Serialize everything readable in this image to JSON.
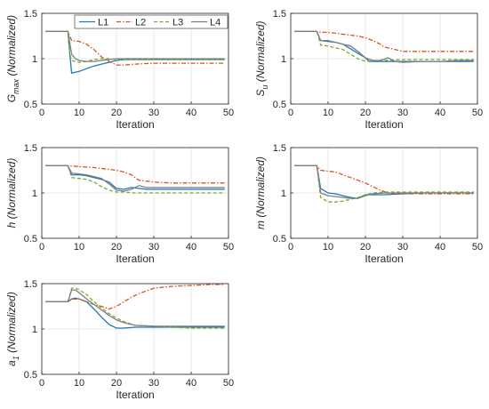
{
  "legend": {
    "placement": "top",
    "entries": [
      {
        "label": "L1",
        "color": "#1f77b4",
        "style": "solid"
      },
      {
        "label": "L2",
        "color": "#d95319",
        "style": "dashdot"
      },
      {
        "label": "L3",
        "color": "#77ac30",
        "style": "dashed"
      },
      {
        "label": "L4",
        "color": "#7f7f7f",
        "style": "solid"
      }
    ]
  },
  "chart_data": [
    {
      "type": "line",
      "ylabel_main": "G",
      "ylabel_sub": "max",
      "ylabel_suffix": " (Normalized)",
      "xlabel": "Iteration",
      "xlim": [
        0,
        50
      ],
      "ylim": [
        0.5,
        1.5
      ],
      "xticks": [
        0,
        10,
        20,
        30,
        40,
        50
      ],
      "yticks": [
        0.5,
        1,
        1.5
      ],
      "grid": true,
      "series": [
        {
          "name": "L1",
          "x": [
            1,
            7,
            7.5,
            8,
            9,
            10,
            12,
            14,
            16,
            18,
            20,
            22,
            25,
            30,
            35,
            40,
            45,
            49
          ],
          "y": [
            1.3,
            1.3,
            1.05,
            0.84,
            0.85,
            0.86,
            0.89,
            0.92,
            0.94,
            0.96,
            0.98,
            0.99,
            0.99,
            0.99,
            0.99,
            0.99,
            0.99,
            0.99
          ]
        },
        {
          "name": "L2",
          "x": [
            1,
            7,
            8,
            10,
            12,
            14,
            16,
            18,
            20,
            22,
            25,
            30,
            35,
            40,
            45,
            49
          ],
          "y": [
            1.3,
            1.3,
            1.2,
            1.19,
            1.16,
            1.1,
            1.02,
            0.97,
            0.93,
            0.93,
            0.94,
            0.95,
            0.95,
            0.95,
            0.95,
            0.95
          ]
        },
        {
          "name": "L3",
          "x": [
            1,
            7,
            7.5,
            8,
            9,
            10,
            12,
            14,
            16,
            18,
            20,
            25,
            30,
            35,
            40,
            45,
            49
          ],
          "y": [
            1.3,
            1.3,
            1.05,
            0.98,
            0.97,
            0.96,
            0.97,
            0.99,
            1.0,
            1.0,
            0.99,
            0.99,
            0.99,
            0.99,
            0.99,
            0.99,
            0.99
          ]
        },
        {
          "name": "L4",
          "x": [
            1,
            7,
            8,
            9,
            10,
            12,
            14,
            16,
            18,
            20,
            25,
            30,
            35,
            40,
            45,
            49
          ],
          "y": [
            1.3,
            1.3,
            1.05,
            1.0,
            0.98,
            0.97,
            0.97,
            0.98,
            0.99,
            1.0,
            1.0,
            1.0,
            1.0,
            1.0,
            1.0,
            1.0
          ]
        }
      ]
    },
    {
      "type": "line",
      "ylabel_main": "S",
      "ylabel_sub": "u",
      "ylabel_suffix": " (Normalized)",
      "xlabel": "Iteration",
      "xlim": [
        0,
        50
      ],
      "ylim": [
        0.5,
        1.5
      ],
      "xticks": [
        0,
        10,
        20,
        30,
        40,
        50
      ],
      "yticks": [
        0.5,
        1,
        1.5
      ],
      "grid": true,
      "series": [
        {
          "name": "L1",
          "x": [
            1,
            7,
            8,
            10,
            12,
            14,
            16,
            18,
            20,
            21,
            22,
            25,
            30,
            35,
            40,
            45,
            49
          ],
          "y": [
            1.3,
            1.3,
            1.2,
            1.19,
            1.18,
            1.16,
            1.11,
            1.06,
            1.01,
            0.97,
            0.97,
            0.97,
            0.97,
            0.97,
            0.97,
            0.97,
            0.97
          ]
        },
        {
          "name": "L2",
          "x": [
            1,
            7,
            8,
            10,
            12,
            14,
            16,
            18,
            20,
            22,
            24,
            25,
            26,
            28,
            30,
            35,
            40,
            45,
            49
          ],
          "y": [
            1.3,
            1.3,
            1.29,
            1.29,
            1.28,
            1.27,
            1.26,
            1.25,
            1.23,
            1.2,
            1.16,
            1.13,
            1.12,
            1.1,
            1.08,
            1.08,
            1.08,
            1.08,
            1.08
          ]
        },
        {
          "name": "L3",
          "x": [
            1,
            7,
            8,
            10,
            12,
            14,
            16,
            18,
            20,
            22,
            25,
            30,
            35,
            40,
            45,
            49
          ],
          "y": [
            1.3,
            1.3,
            1.15,
            1.14,
            1.12,
            1.1,
            1.05,
            1.0,
            0.97,
            0.98,
            0.98,
            0.99,
            0.99,
            0.99,
            0.99,
            0.99
          ]
        },
        {
          "name": "L4",
          "x": [
            1,
            7,
            8,
            10,
            12,
            14,
            16,
            18,
            20,
            22,
            24,
            26,
            28,
            30,
            35,
            40,
            45,
            49
          ],
          "y": [
            1.3,
            1.3,
            1.2,
            1.2,
            1.18,
            1.16,
            1.14,
            1.08,
            1.01,
            0.98,
            0.98,
            1.01,
            0.97,
            0.96,
            0.97,
            0.97,
            0.98,
            0.98
          ]
        }
      ]
    },
    {
      "type": "line",
      "ylabel_main": "h",
      "ylabel_sub": "",
      "ylabel_suffix": " (Normalized)",
      "xlabel": "Iteration",
      "xlim": [
        0,
        50
      ],
      "ylim": [
        0.5,
        1.5
      ],
      "xticks": [
        0,
        10,
        20,
        30,
        40,
        50
      ],
      "yticks": [
        0.5,
        1,
        1.5
      ],
      "grid": true,
      "series": [
        {
          "name": "L1",
          "x": [
            1,
            7,
            8,
            10,
            12,
            14,
            16,
            18,
            20,
            22,
            24,
            26,
            28,
            30,
            35,
            40,
            45,
            49
          ],
          "y": [
            1.3,
            1.3,
            1.2,
            1.2,
            1.19,
            1.17,
            1.15,
            1.12,
            1.05,
            1.04,
            1.06,
            1.05,
            1.04,
            1.04,
            1.04,
            1.04,
            1.04,
            1.04
          ]
        },
        {
          "name": "L2",
          "x": [
            1,
            7,
            10,
            14,
            18,
            20,
            22,
            24,
            25,
            26,
            28,
            30,
            35,
            40,
            45,
            49
          ],
          "y": [
            1.3,
            1.3,
            1.29,
            1.28,
            1.26,
            1.25,
            1.23,
            1.2,
            1.17,
            1.14,
            1.13,
            1.12,
            1.11,
            1.11,
            1.11,
            1.11
          ]
        },
        {
          "name": "L3",
          "x": [
            1,
            7,
            8,
            10,
            12,
            14,
            16,
            18,
            20,
            22,
            25,
            28,
            30,
            35,
            40,
            45,
            49
          ],
          "y": [
            1.3,
            1.3,
            1.17,
            1.16,
            1.15,
            1.12,
            1.07,
            1.03,
            1.01,
            1.01,
            1.0,
            1.0,
            1.0,
            1.0,
            1.0,
            1.0,
            1.0
          ]
        },
        {
          "name": "L4",
          "x": [
            1,
            7,
            8,
            10,
            12,
            14,
            16,
            18,
            20,
            22,
            24,
            26,
            28,
            30,
            35,
            40,
            45,
            49
          ],
          "y": [
            1.3,
            1.3,
            1.22,
            1.21,
            1.2,
            1.18,
            1.16,
            1.1,
            1.03,
            1.02,
            1.04,
            1.08,
            1.06,
            1.06,
            1.06,
            1.06,
            1.06,
            1.06
          ]
        }
      ]
    },
    {
      "type": "line",
      "ylabel_main": "m",
      "ylabel_sub": "",
      "ylabel_suffix": " (Normalized)",
      "xlabel": "Iteration",
      "xlim": [
        0,
        50
      ],
      "ylim": [
        0.5,
        1.5
      ],
      "xticks": [
        0,
        10,
        20,
        30,
        40,
        50
      ],
      "yticks": [
        0.5,
        1,
        1.5
      ],
      "grid": true,
      "series": [
        {
          "name": "L1",
          "x": [
            1,
            7,
            8,
            10,
            12,
            14,
            16,
            18,
            20,
            22,
            25,
            30,
            35,
            40,
            45,
            49
          ],
          "y": [
            1.3,
            1.3,
            1.05,
            1.0,
            0.99,
            0.97,
            0.95,
            0.94,
            0.98,
            0.98,
            0.98,
            0.99,
            1.0,
            1.0,
            1.0,
            1.0
          ]
        },
        {
          "name": "L2",
          "x": [
            1,
            7,
            8,
            10,
            12,
            14,
            16,
            18,
            20,
            22,
            24,
            26,
            28,
            30,
            35,
            40,
            45,
            49
          ],
          "y": [
            1.3,
            1.3,
            1.25,
            1.24,
            1.23,
            1.2,
            1.17,
            1.14,
            1.11,
            1.07,
            1.03,
            1.0,
            0.99,
            0.99,
            0.99,
            0.99,
            0.99,
            0.99
          ]
        },
        {
          "name": "L3",
          "x": [
            1,
            7,
            8,
            10,
            12,
            14,
            16,
            18,
            20,
            22,
            25,
            30,
            35,
            40,
            45,
            49
          ],
          "y": [
            1.3,
            1.3,
            0.95,
            0.9,
            0.9,
            0.91,
            0.93,
            0.95,
            0.98,
            1.0,
            1.01,
            1.01,
            1.01,
            1.01,
            1.01,
            1.01
          ]
        },
        {
          "name": "L4",
          "x": [
            1,
            7,
            8,
            10,
            12,
            14,
            16,
            18,
            20,
            22,
            25,
            30,
            35,
            40,
            45,
            49
          ],
          "y": [
            1.3,
            1.3,
            1.0,
            0.97,
            0.96,
            0.95,
            0.94,
            0.94,
            0.97,
            0.99,
            1.0,
            1.0,
            1.0,
            1.0,
            1.0,
            1.0
          ]
        }
      ]
    },
    {
      "type": "line",
      "ylabel_main": "a",
      "ylabel_sub": "1",
      "ylabel_suffix": " (Normalized)",
      "xlabel": "Iteration",
      "xlim": [
        0,
        50
      ],
      "ylim": [
        0.5,
        1.5
      ],
      "xticks": [
        0,
        10,
        20,
        30,
        40,
        50
      ],
      "yticks": [
        0.5,
        1,
        1.5
      ],
      "grid": true,
      "series": [
        {
          "name": "L1",
          "x": [
            1,
            7,
            8,
            9,
            10,
            12,
            14,
            16,
            18,
            20,
            22,
            25,
            30,
            35,
            40,
            45,
            49
          ],
          "y": [
            1.3,
            1.3,
            1.33,
            1.34,
            1.33,
            1.3,
            1.22,
            1.13,
            1.05,
            1.01,
            1.01,
            1.02,
            1.02,
            1.02,
            1.02,
            1.02,
            1.02
          ]
        },
        {
          "name": "L2",
          "x": [
            1,
            7,
            8,
            10,
            12,
            14,
            16,
            18,
            20,
            22,
            24,
            26,
            28,
            30,
            35,
            40,
            45,
            49
          ],
          "y": [
            1.3,
            1.3,
            1.33,
            1.33,
            1.3,
            1.27,
            1.25,
            1.22,
            1.25,
            1.3,
            1.35,
            1.39,
            1.42,
            1.45,
            1.47,
            1.48,
            1.49,
            1.49
          ]
        },
        {
          "name": "L3",
          "x": [
            1,
            7,
            8,
            9,
            10,
            12,
            14,
            16,
            18,
            20,
            22,
            25,
            30,
            35,
            40,
            45,
            49
          ],
          "y": [
            1.3,
            1.3,
            1.45,
            1.45,
            1.43,
            1.38,
            1.3,
            1.23,
            1.17,
            1.12,
            1.08,
            1.04,
            1.03,
            1.02,
            1.01,
            1.01,
            1.01
          ]
        },
        {
          "name": "L4",
          "x": [
            1,
            7,
            8,
            9,
            10,
            12,
            14,
            16,
            18,
            20,
            22,
            25,
            30,
            35,
            40,
            45,
            49
          ],
          "y": [
            1.3,
            1.3,
            1.43,
            1.43,
            1.4,
            1.33,
            1.27,
            1.21,
            1.15,
            1.1,
            1.07,
            1.04,
            1.03,
            1.03,
            1.03,
            1.03,
            1.03
          ]
        }
      ]
    }
  ]
}
